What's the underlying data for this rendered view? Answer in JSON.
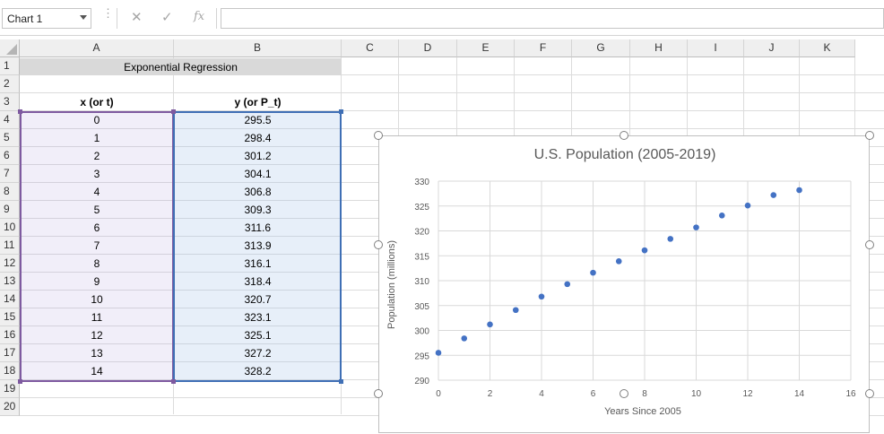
{
  "formula_bar": {
    "name_box": "Chart 1",
    "formula": ""
  },
  "columns": [
    "A",
    "B",
    "C",
    "D",
    "E",
    "F",
    "G",
    "H",
    "I",
    "J",
    "K"
  ],
  "rows": [
    "1",
    "2",
    "3",
    "4",
    "5",
    "6",
    "7",
    "8",
    "9",
    "10",
    "11",
    "12",
    "13",
    "14",
    "15",
    "16",
    "17",
    "18",
    "19",
    "20"
  ],
  "sheet": {
    "title": "Exponential Regression",
    "header_a": "x (or t)",
    "header_b": "y (or P_t)",
    "x_values": [
      "0",
      "1",
      "2",
      "3",
      "4",
      "5",
      "6",
      "7",
      "8",
      "9",
      "10",
      "11",
      "12",
      "13",
      "14"
    ],
    "y_values": [
      "295.5",
      "298.4",
      "301.2",
      "304.1",
      "306.8",
      "309.3",
      "311.6",
      "313.9",
      "316.1",
      "318.4",
      "320.7",
      "323.1",
      "325.1",
      "327.2",
      "328.2"
    ]
  },
  "chart_data": {
    "type": "scatter",
    "title": "U.S. Population (2005-2019)",
    "xlabel": "Years Since 2005",
    "ylabel": "Population (millions)",
    "xlim": [
      0,
      16
    ],
    "ylim": [
      290,
      330
    ],
    "xticks": [
      0,
      2,
      4,
      6,
      8,
      10,
      12,
      14,
      16
    ],
    "yticks": [
      290,
      295,
      300,
      305,
      310,
      315,
      320,
      325,
      330
    ],
    "grid": true,
    "marker_color": "#4472c4",
    "x": [
      0,
      1,
      2,
      3,
      4,
      5,
      6,
      7,
      8,
      9,
      10,
      11,
      12,
      13,
      14
    ],
    "y": [
      295.5,
      298.4,
      301.2,
      304.1,
      306.8,
      309.3,
      311.6,
      313.9,
      316.1,
      318.4,
      320.7,
      323.1,
      325.1,
      327.2,
      328.2
    ]
  }
}
